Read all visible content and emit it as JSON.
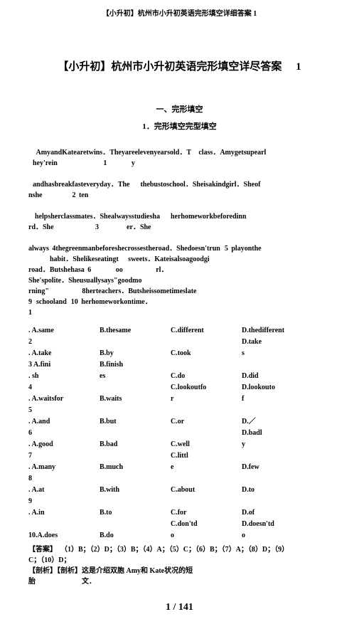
{
  "header": "【小升初】杭州市小升初英语完形填空详细答案 1",
  "main_title_prefix": "【小升初】杭州市小升初英语完形填空详尽答案",
  "main_title_num": "1",
  "section_title": "一、完形填空",
  "sub_section": "1．完形填空完型填空",
  "passage": "       AmyandKatearetwins．Theyareelevenyearsold．T       class．Amygetsupearl\n    hey'rein                                           1                       y\n\n    andhasbreakfasteveryday．The          thebustoschool．Sheisakindgirl．Sheof\nnshe                            2   ten\n\n      helpsherclassmates．Shealwaysstudiesha          herhomeworkbeforedinn\nrd．She                                       3                          er．She\n\nalways   4thegreenmanbeforeshecrossestheroad．Shedoesn'trun    5   playonthe\n                    habit．Shelikeseatingt         sweets．Kateisalsoagoodgi\nroad．Butshehasa   6                       oo                               rl．\nShe'spolite．Sheusuallysays\"goodmo\nrning\"                               8herteachers．Butsheissometimeslate\n9    schooland    10   herhomeworkontime．\n1",
  "options": [
    {
      "A": ". A.same",
      "B": "B.thesame",
      "C": "C.different",
      "D": "D.thedifferent"
    },
    {
      "A": "2",
      "B": "",
      "C": "",
      "D": "D.take"
    },
    {
      "A": ". A.take",
      "B": "B.by",
      "C": "C.took",
      "D": "s"
    },
    {
      "A": "3 A.fini",
      "B": "B.finish",
      "C": "",
      "D": ""
    },
    {
      "A": ".     sh",
      "B": "es",
      "C": "C.do",
      "D": "D.did"
    },
    {
      "A": "4",
      "B": "",
      "C": "C.lookoutfo",
      "D": "D.lookouto"
    },
    {
      "A": ". A.waitsfor",
      "B": "B.waits",
      "C": "r",
      "D": "f"
    },
    {
      "A": "5",
      "B": "",
      "C": "",
      "D": ""
    },
    {
      "A": ". A.and",
      "B": "B.but",
      "C": "C.or",
      "D": "D.／"
    },
    {
      "A": "6",
      "B": "",
      "C": "",
      "D": "D.badl"
    },
    {
      "A": ". A.good",
      "B": "B.bad",
      "C": "C.well",
      "D": "y"
    },
    {
      "A": "7",
      "B": "",
      "C": "C.littl",
      "D": ""
    },
    {
      "A": ". A.many",
      "B": "B.much",
      "C": "e",
      "D": "D.few"
    },
    {
      "A": "8",
      "B": "",
      "C": "",
      "D": ""
    },
    {
      "A": ". A.at",
      "B": "B.with",
      "C": "C.about",
      "D": "D.to"
    },
    {
      "A": "9",
      "B": "",
      "C": "",
      "D": ""
    },
    {
      "A": ". A.in",
      "B": "B.to",
      "C": "C.for",
      "D": "D.of"
    },
    {
      "A": "",
      "B": "",
      "C": "C.don'td",
      "D": "D.doesn'td"
    },
    {
      "A": "10.A.does",
      "B": "B.do",
      "C": "o",
      "D": "o"
    }
  ],
  "answer": "【答案】  （1）B；（2）D；（3）B；（4）A；（5）C；（6）B；（7）A；（8）D；（9）\nC；（10）D；",
  "analysis": "【剖析】【剖析】这是介绍双胞 Amy和 Kate状况的短\n胎                          文．",
  "pager": "1 / 141",
  "colors": {
    "bg": "#ffffff",
    "text": "#000000"
  }
}
